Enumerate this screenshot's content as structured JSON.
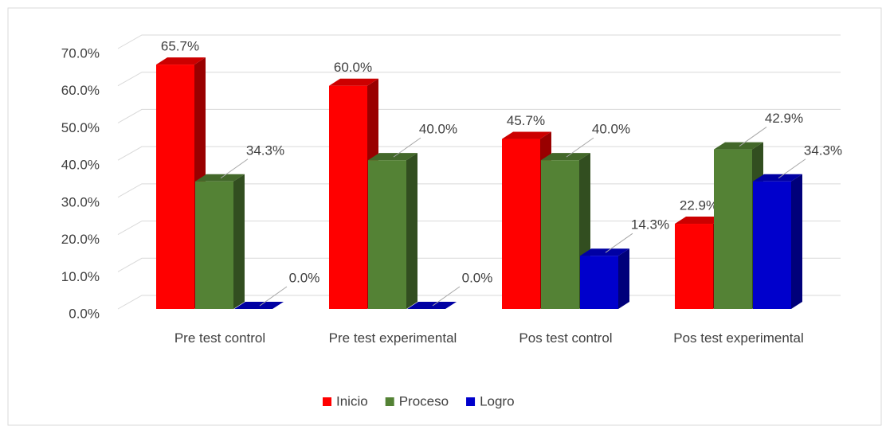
{
  "chart_data": {
    "type": "bar3d",
    "categories": [
      "Pre test control",
      "Pre test experimental",
      "Pos test control",
      "Pos test experimental"
    ],
    "series": [
      {
        "name": "Inicio",
        "color": "#ff0000",
        "values": [
          65.7,
          60.0,
          45.7,
          22.9
        ],
        "value_labels": [
          "65.7%",
          "60.0%",
          "45.7%",
          "22.9%"
        ]
      },
      {
        "name": "Proceso",
        "color": "#548235",
        "values": [
          34.3,
          40.0,
          40.0,
          42.9
        ],
        "value_labels": [
          "34.3%",
          "40.0%",
          "40.0%",
          "42.9%"
        ]
      },
      {
        "name": "Logro",
        "color": "#0000cc",
        "values": [
          0.0,
          0.0,
          14.3,
          34.3
        ],
        "value_labels": [
          "0.0%",
          "0.0%",
          "14.3%",
          "34.3%"
        ]
      }
    ],
    "ylim": [
      0,
      70
    ],
    "yticks": [
      {
        "value": 0,
        "label": "0.0%"
      },
      {
        "value": 10,
        "label": "10.0%"
      },
      {
        "value": 20,
        "label": "20.0%"
      },
      {
        "value": 30,
        "label": "30.0%"
      },
      {
        "value": 40,
        "label": "40.0%"
      },
      {
        "value": 50,
        "label": "50.0%"
      },
      {
        "value": 60,
        "label": "60.0%"
      },
      {
        "value": 70,
        "label": "70.0%"
      }
    ],
    "grid": true,
    "legend": "bottom"
  }
}
